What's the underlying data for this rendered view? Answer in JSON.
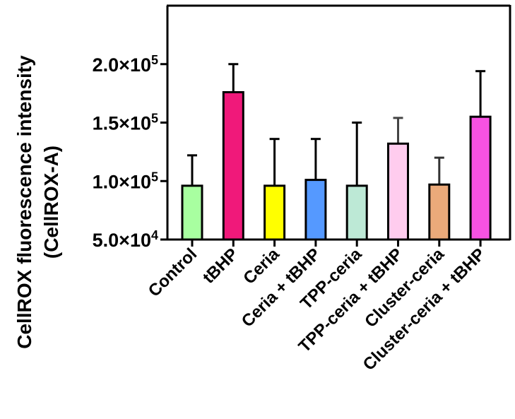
{
  "chart_data": {
    "type": "bar",
    "ylabel": "CellROX  fluorescence intensity",
    "ylabel_line2": "(CellROX-A)",
    "ylim": [
      50000,
      250000
    ],
    "y_ticks": [
      {
        "value": 50000,
        "mant": "5.0",
        "exp": "4"
      },
      {
        "value": 100000,
        "mant": "1.0",
        "exp": "5"
      },
      {
        "value": 150000,
        "mant": "1.5",
        "exp": "5"
      },
      {
        "value": 200000,
        "mant": "2.0",
        "exp": "5"
      }
    ],
    "categories": [
      "Control",
      "tBHP",
      "Ceria",
      "Ceria + tBHP",
      "TPP-ceria",
      "TPP-ceria + tBHP",
      "Cluster-ceria",
      "Cluster-ceria + tBHP"
    ],
    "values": [
      96000,
      176000,
      96000,
      101000,
      96000,
      132000,
      97000,
      155000
    ],
    "error_upper": [
      122000,
      200000,
      136000,
      136000,
      150000,
      154000,
      120000,
      194000
    ],
    "colors": [
      "#A8FFA0",
      "#F0197A",
      "#FFFF00",
      "#5599FF",
      "#BDE9D6",
      "#FFCCEE",
      "#EBAA7A",
      "#F752E2"
    ],
    "error_colors": [
      "#000000",
      "#000000",
      "#000000",
      "#000000",
      "#000000",
      "#444444",
      "#333333",
      "#000000"
    ],
    "grid": false,
    "legend": "none"
  }
}
